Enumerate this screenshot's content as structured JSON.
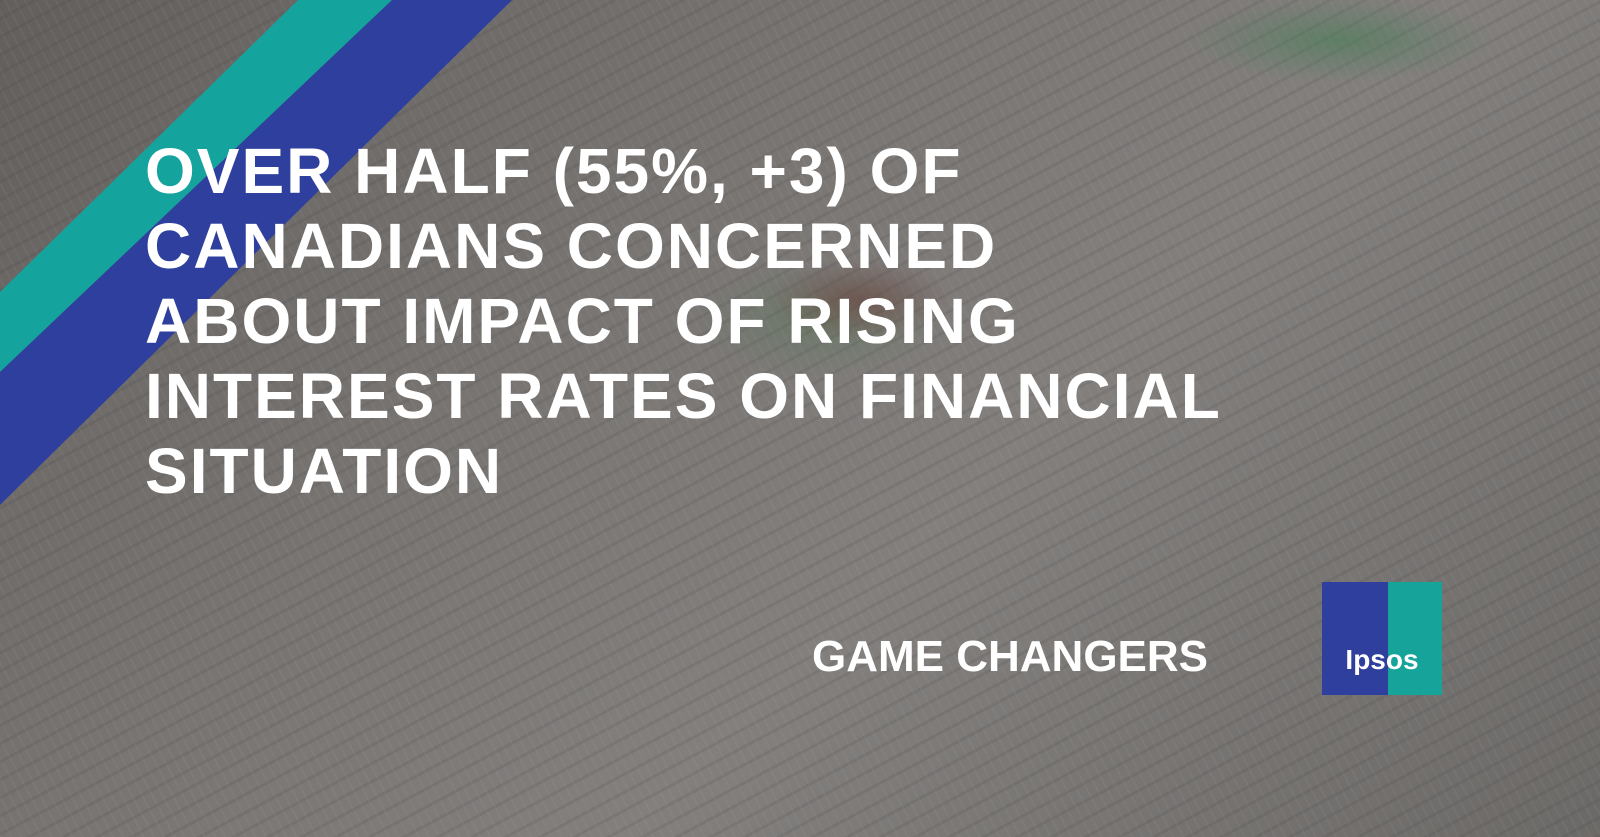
{
  "headline": [
    "OVER HALF (55%, +3) OF",
    "CANADIANS CONCERNED",
    "ABOUT IMPACT OF RISING",
    "INTEREST RATES ON FINANCIAL",
    "SITUATION"
  ],
  "tagline": "GAME CHANGERS",
  "logo": "Ipsos"
}
